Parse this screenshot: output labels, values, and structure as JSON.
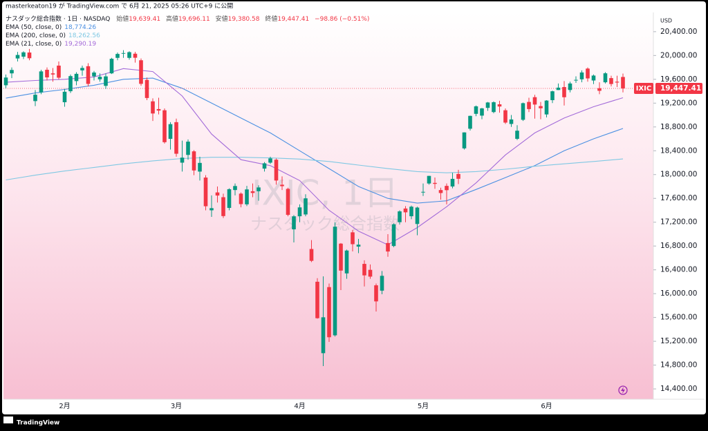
{
  "chart_data": {
    "type": "candlestick",
    "header": {
      "author_line": "masterkeaton19 が TradingView.com で 6月 21, 2025 05:26 UTC+9 に公開",
      "symbol_line": "ナスダック総合指数 · 1日 · NASDAQ",
      "ohlc": [
        {
          "label": "始値",
          "value": "19,639.41"
        },
        {
          "label": "高値",
          "value": "19,696.11"
        },
        {
          "label": "安値",
          "value": "19,380.58"
        },
        {
          "label": "終値",
          "value": "19,447.41"
        }
      ],
      "change": "−98.86 (−0.51%)"
    },
    "watermark": {
      "title": "IXIC, 1日",
      "subtitle": "ナスダック総合指数"
    },
    "currency": "USD",
    "symbol": "IXIC",
    "last_price_label": "19,447.41",
    "brand": "TradingView",
    "up_color": "#089981",
    "down_color": "#f23645",
    "grid": false,
    "categories": [
      null,
      null,
      null,
      null,
      null,
      null,
      null,
      null,
      null,
      null,
      "2月",
      null,
      null,
      null,
      null,
      null,
      null,
      null,
      null,
      null,
      null,
      null,
      null,
      null,
      null,
      null,
      null,
      null,
      null,
      "3月",
      null,
      null,
      null,
      null,
      null,
      null,
      null,
      null,
      null,
      null,
      null,
      null,
      null,
      null,
      null,
      null,
      null,
      null,
      null,
      null,
      "4月",
      null,
      null,
      null,
      null,
      null,
      null,
      null,
      null,
      null,
      null,
      null,
      null,
      null,
      null,
      null,
      null,
      null,
      null,
      null,
      null,
      "5月",
      null,
      null,
      null,
      null,
      null,
      null,
      null,
      null,
      null,
      null,
      null,
      null,
      null,
      null,
      null,
      null,
      null,
      null,
      null,
      null,
      "6月",
      null,
      null,
      null,
      null,
      null,
      null,
      null,
      null,
      null,
      null,
      null,
      null,
      null
    ],
    "open": [
      19500,
      19700,
      19950,
      19980,
      20050,
      19234,
      19380,
      19760,
      19700,
      19830,
      19215,
      19400,
      19570,
      19750,
      19820,
      19650,
      19600,
      19490,
      19700,
      19960,
      20040,
      19960,
      20030,
      19920,
      19590,
      19230,
      19100,
      19080,
      18600,
      18880,
      18200,
      18330,
      18390,
      18050,
      17950,
      17400,
      17700,
      17620,
      17440,
      17740,
      17680,
      17500,
      17720,
      17720,
      18100,
      18200,
      18250,
      17830,
      17760,
      17080,
      17300,
      17330,
      16750,
      16200,
      15000,
      16110,
      15300,
      16840,
      16340,
      17030,
      16790,
      16500,
      16400,
      16140,
      16050,
      16850,
      16800,
      17200,
      17430,
      17300,
      17170,
      17700,
      17850,
      17860,
      17740,
      17810,
      17800,
      18010,
      18440,
      18770,
      19020,
      18990,
      19120,
      19050,
      19180,
      19080,
      18850,
      18600,
      18920,
      19220,
      19300,
      19150,
      19010,
      19250,
      19420,
      19470,
      19420,
      19580,
      19600,
      19780,
      19580,
      19450,
      19550,
      19620,
      19560,
      19639.41
    ],
    "high": [
      19680,
      19800,
      20060,
      20070,
      20110,
      19420,
      19760,
      19800,
      19790,
      19900,
      19440,
      19680,
      19720,
      19830,
      19870,
      19740,
      19700,
      19700,
      19960,
      20050,
      20090,
      20070,
      20060,
      19950,
      19630,
      19280,
      19290,
      19110,
      18880,
      18940,
      18570,
      18590,
      18410,
      18300,
      17990,
      17650,
      17800,
      17680,
      17770,
      17850,
      17700,
      17810,
      17850,
      17820,
      18210,
      18300,
      18270,
      17970,
      17780,
      17320,
      17500,
      17670,
      16900,
      16260,
      16290,
      16170,
      17200,
      16850,
      16740,
      17070,
      16920,
      16560,
      16490,
      16170,
      16380,
      17000,
      17180,
      17400,
      17470,
      17480,
      17460,
      17850,
      17980,
      17950,
      17780,
      17850,
      18030,
      18080,
      18710,
      18990,
      19160,
      19120,
      19220,
      19230,
      19240,
      19110,
      19000,
      18830,
      19210,
      19290,
      19340,
      19220,
      19250,
      19410,
      19530,
      19570,
      19560,
      19650,
      19750,
      19800,
      19680,
      19550,
      19720,
      19660,
      19660,
      19696.11
    ],
    "low": [
      19450,
      19620,
      19900,
      19940,
      19920,
      19150,
      19350,
      19580,
      19560,
      19600,
      19140,
      19370,
      19500,
      19660,
      19480,
      19580,
      19560,
      19440,
      19690,
      19920,
      19960,
      19930,
      19880,
      19490,
      19250,
      18900,
      19010,
      18520,
      18420,
      18300,
      18050,
      18250,
      17990,
      17900,
      17400,
      17290,
      17530,
      17270,
      17400,
      17650,
      17450,
      17470,
      17620,
      17560,
      18050,
      18180,
      17830,
      17740,
      17300,
      16860,
      17200,
      17300,
      16530,
      15580,
      14784,
      15190,
      15280,
      16060,
      16250,
      16710,
      16680,
      16120,
      16250,
      15700,
      15990,
      16620,
      16780,
      17160,
      17200,
      17250,
      16980,
      17640,
      17830,
      17760,
      17580,
      17500,
      17770,
      17840,
      18420,
      18740,
      18980,
      18930,
      19070,
      19030,
      19040,
      18850,
      18800,
      18580,
      18900,
      19050,
      18940,
      18930,
      18960,
      19200,
      19420,
      19160,
      19380,
      19540,
      19550,
      19560,
      19520,
      19350,
      19530,
      19480,
      19470,
      19380.58
    ],
    "close": [
      19630,
      19757,
      20009,
      20053,
      19954,
      19341,
      19733,
      19632,
      19681,
      19627,
      19391,
      19654,
      19692,
      19791,
      19523,
      19714,
      19643,
      19649,
      19945,
      20026,
      20041,
      20056,
      19962,
      19524,
      19286,
      19026,
      19075,
      18544,
      18847,
      18350,
      18285,
      18553,
      18069,
      18196,
      17468,
      17436,
      17648,
      17303,
      17754,
      17808,
      17504,
      17751,
      17691,
      17784,
      18189,
      18272,
      17900,
      17805,
      17323,
      17299,
      17449,
      17601,
      16551,
      15588,
      15603,
      15268,
      17125,
      16387,
      16724,
      16831,
      16823,
      16307,
      16286,
      15870,
      16300,
      16708,
      17166,
      17382,
      17366,
      17461,
      17446,
      17710,
      17978,
      17844,
      17690,
      17738,
      17928,
      17929,
      18708,
      18986,
      19146,
      19112,
      19211,
      19215,
      19143,
      18873,
      18926,
      18737,
      19199,
      19100,
      19176,
      19114,
      19243,
      19399,
      19460,
      19299,
      19530,
      19591,
      19715,
      19615,
      19663,
      19407,
      19701,
      19521,
      19546,
      19447.41
    ],
    "series": [
      {
        "name": "EMA (50, close, 0)",
        "value_label": "18,774.26",
        "color": "#4a90e2",
        "x": [
          0,
          5,
          10,
          15,
          20,
          25,
          30,
          35,
          40,
          45,
          50,
          55,
          60,
          65,
          70,
          75,
          80,
          85,
          90,
          95,
          100,
          105
        ],
        "values": [
          19284,
          19370,
          19430,
          19500,
          19600,
          19620,
          19450,
          19200,
          18950,
          18700,
          18400,
          18100,
          17800,
          17600,
          17520,
          17560,
          17750,
          17950,
          18150,
          18400,
          18600,
          18774.26
        ]
      },
      {
        "name": "EMA (200, close, 0)",
        "value_label": "18,262.56",
        "color": "#7ec8e3",
        "x": [
          0,
          5,
          10,
          15,
          20,
          25,
          30,
          35,
          40,
          45,
          50,
          55,
          60,
          65,
          70,
          75,
          80,
          85,
          90,
          95,
          100,
          105
        ],
        "values": [
          17910,
          17990,
          18060,
          18120,
          18180,
          18230,
          18270,
          18290,
          18290,
          18280,
          18260,
          18220,
          18160,
          18100,
          18050,
          18030,
          18050,
          18090,
          18140,
          18180,
          18220,
          18262.56
        ]
      },
      {
        "name": "EMA (21, close, 0)",
        "value_label": "19,290.19",
        "color": "#a36bd9",
        "x": [
          0,
          5,
          10,
          15,
          20,
          25,
          30,
          35,
          40,
          45,
          50,
          55,
          60,
          65,
          70,
          75,
          80,
          85,
          90,
          95,
          100,
          105
        ],
        "values": [
          19550,
          19580,
          19600,
          19640,
          19780,
          19730,
          19320,
          18680,
          18250,
          18150,
          17900,
          17400,
          17050,
          16820,
          17110,
          17460,
          17860,
          18330,
          18700,
          18950,
          19140,
          19290.19
        ]
      }
    ],
    "ylim": [
      14250,
      20700
    ],
    "yticks": [
      {
        "value": 14400,
        "label": "14,400.00"
      },
      {
        "value": 14800,
        "label": "14,800.00"
      },
      {
        "value": 15200,
        "label": "15,200.00"
      },
      {
        "value": 15600,
        "label": "15,600.00"
      },
      {
        "value": 16000,
        "label": "16,000.00"
      },
      {
        "value": 16400,
        "label": "16,400.00"
      },
      {
        "value": 16800,
        "label": "16,800.00"
      },
      {
        "value": 17200,
        "label": "17,200.00"
      },
      {
        "value": 17600,
        "label": "17,600.00"
      },
      {
        "value": 18000,
        "label": "18,000.00"
      },
      {
        "value": 18400,
        "label": "18,400.00"
      },
      {
        "value": 18800,
        "label": "18,800.00"
      },
      {
        "value": 19200,
        "label": "19,200.00"
      },
      {
        "value": 19600,
        "label": "19,600.00"
      },
      {
        "value": 20000,
        "label": "20,000.00"
      },
      {
        "value": 20400,
        "label": "20,400.00"
      }
    ]
  }
}
